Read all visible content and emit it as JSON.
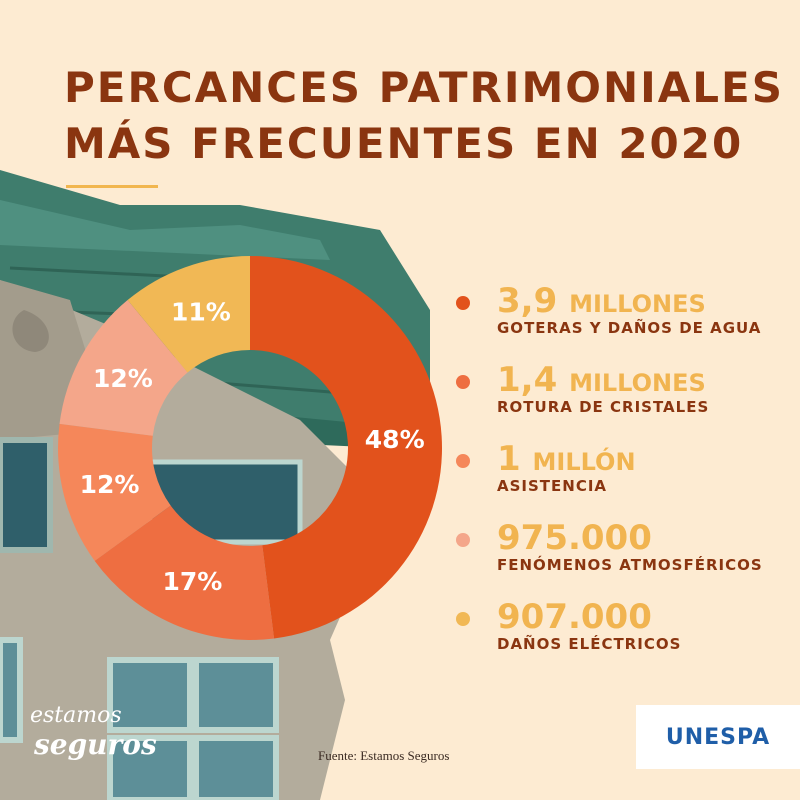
{
  "title": {
    "line1": "PERCANCES PATRIMONIALES",
    "line2": "MÁS FRECUENTES EN 2020"
  },
  "chart_data": {
    "type": "pie",
    "title": "PERCANCES PATRIMONIALES MÁS FRECUENTES EN 2020",
    "slices": [
      {
        "label": "GOTERAS Y DAÑOS DE AGUA",
        "value": 48,
        "display": "48%",
        "amount_num": "3,9",
        "amount_unit": "MILLONES",
        "color": "#e2521c"
      },
      {
        "label": "ROTURA DE CRISTALES",
        "value": 17,
        "display": "17%",
        "amount_num": "1,4",
        "amount_unit": "MILLONES",
        "color": "#ee6e41"
      },
      {
        "label": "ASISTENCIA",
        "value": 12,
        "display": "12%",
        "amount_num": "1",
        "amount_unit": "MILLÓN",
        "color": "#f5875a"
      },
      {
        "label": "FENÓMENOS ATMOSFÉRICOS",
        "value": 12,
        "display": "12%",
        "amount_num": "975.000",
        "amount_unit": "",
        "color": "#f4a68a"
      },
      {
        "label": "DAÑOS ELÉCTRICOS",
        "value": 11,
        "display": "11%",
        "amount_num": "907.000",
        "amount_unit": "",
        "color": "#f1b855"
      }
    ]
  },
  "source": "Fuente: Estamos Seguros",
  "brand": {
    "line1": "estamos",
    "line2": "seguros"
  },
  "logo": "UNESPA",
  "colors": {
    "background": "#fdebd2",
    "title": "#8a3510",
    "accent": "#f1b64f",
    "logo": "#1f5ea8"
  }
}
